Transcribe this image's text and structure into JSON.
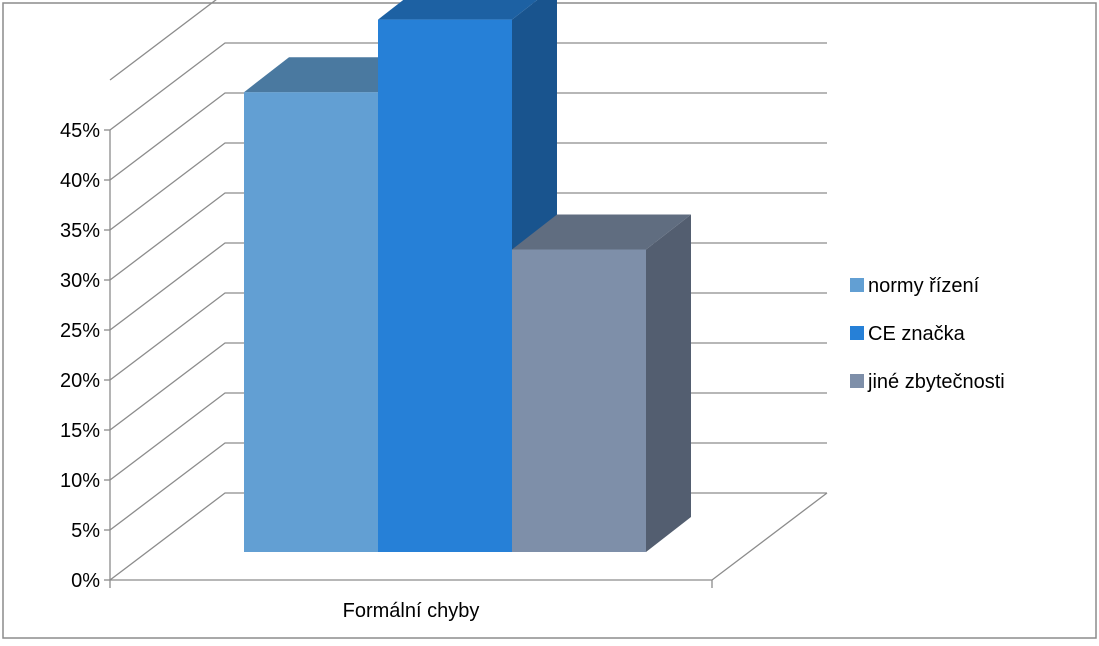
{
  "chart_data": {
    "type": "bar",
    "categories": [
      "Formální chyby"
    ],
    "series": [
      {
        "name": "normy řízení",
        "values": [
          38
        ],
        "color": "#629FD3"
      },
      {
        "name": "CE značka",
        "values": [
          44
        ],
        "color": "#2680D7"
      },
      {
        "name": "jiné zbytečnosti",
        "values": [
          25
        ],
        "color": "#7E8FA9"
      }
    ],
    "y_ticks": [
      "0%",
      "5%",
      "10%",
      "15%",
      "20%",
      "25%",
      "30%",
      "35%",
      "40%",
      "45%"
    ],
    "ylim": [
      0,
      45
    ],
    "title": "",
    "xlabel": "",
    "ylabel": "",
    "grid": true,
    "legend": "right",
    "three_d": true
  }
}
